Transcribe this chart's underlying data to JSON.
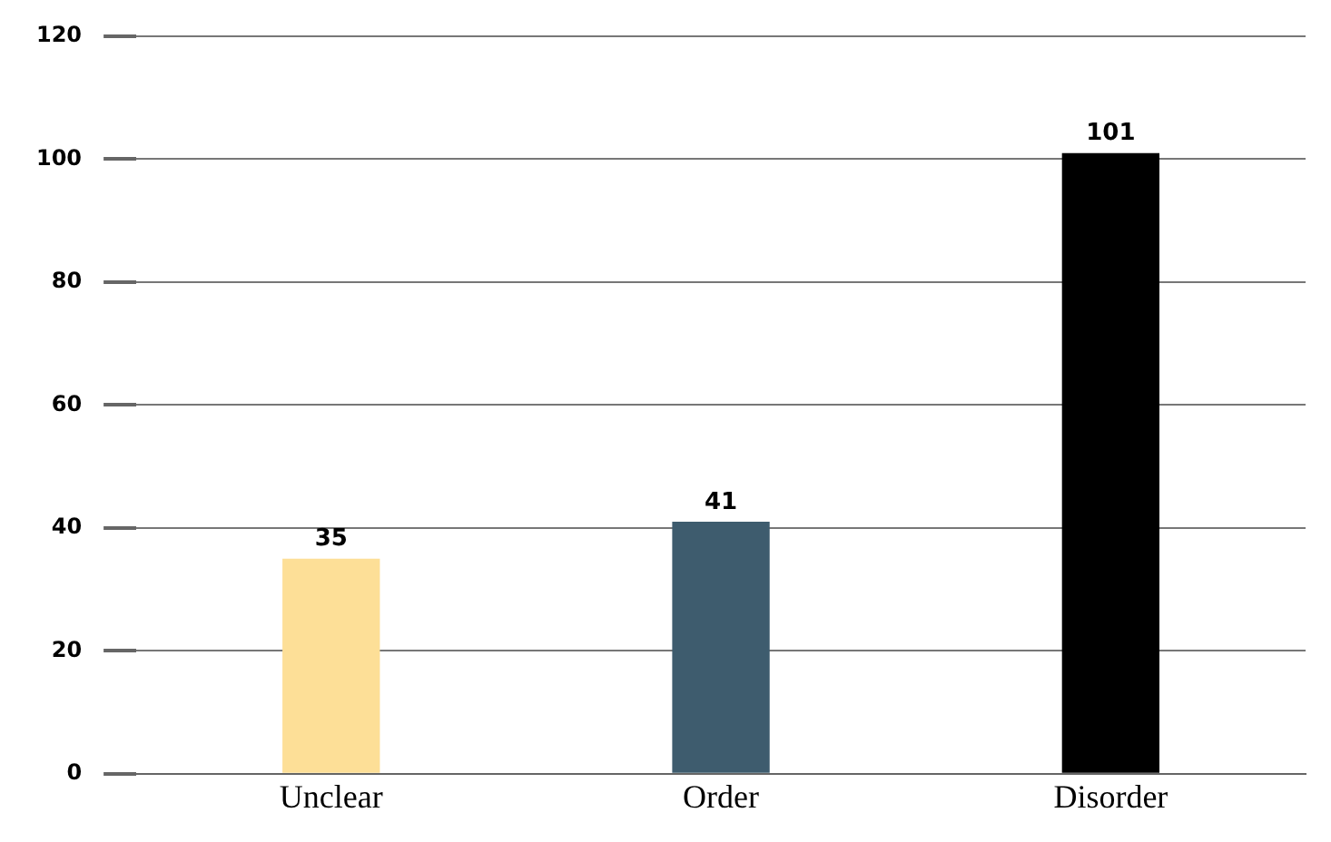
{
  "chart_data": {
    "type": "bar",
    "categories": [
      "Unclear",
      "Order",
      "Disorder"
    ],
    "values": [
      35,
      41,
      101
    ],
    "colors": [
      "#fddf97",
      "#3e5c6e",
      "#000000"
    ],
    "ylim": [
      0,
      120
    ],
    "yticks": [
      0,
      20,
      40,
      60,
      80,
      100,
      120
    ],
    "grid": "y",
    "data_labels": true,
    "legend": false
  }
}
